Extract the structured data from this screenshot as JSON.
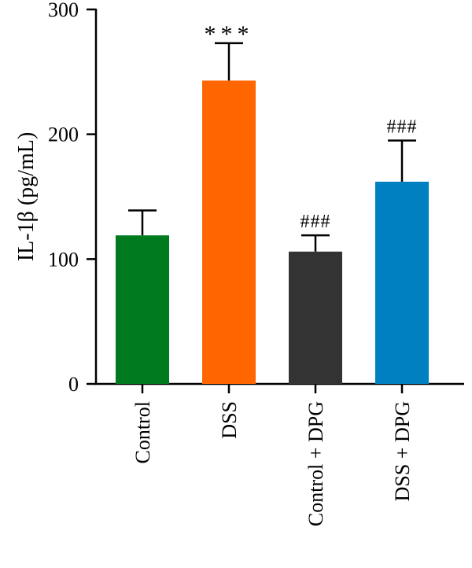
{
  "chart_data": {
    "type": "bar",
    "title": "",
    "xlabel": "",
    "ylabel": "IL-1β (pg/mL)",
    "ylim": [
      0,
      300
    ],
    "yticks": [
      0,
      100,
      200,
      300
    ],
    "categories": [
      "Control",
      "DSS",
      "Control + DPG",
      "DSS + DPG"
    ],
    "values": [
      119,
      243,
      106,
      162
    ],
    "errors": [
      20,
      30,
      13,
      33
    ],
    "colors": [
      "#007a1f",
      "#ff6600",
      "#333333",
      "#0080c0"
    ],
    "annotations": [
      "",
      "***",
      "###",
      "###"
    ],
    "grid": false,
    "legend": "none"
  }
}
